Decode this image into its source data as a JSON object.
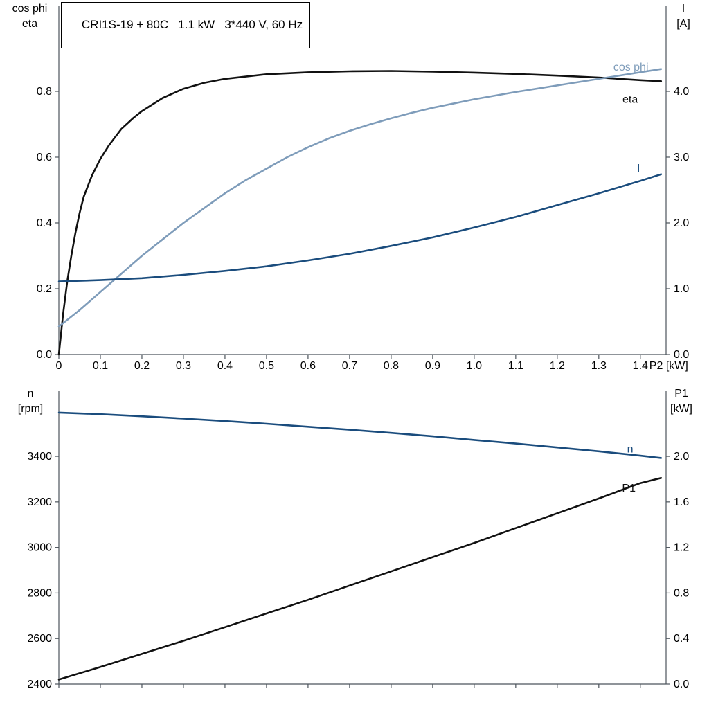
{
  "header": {
    "title": "CRI1S-19 + 80C   1.1 kW   3*440 V, 60 Hz"
  },
  "colors": {
    "black": "#111111",
    "light_blue": "#7e9cba",
    "dark_blue": "#1a4c7d",
    "axis": "#4c545c"
  },
  "corner_labels": {
    "top_left_line1": "cos phi",
    "top_left_line2": "eta",
    "top_right_line1": "I",
    "top_right_line2": "[A]",
    "bottom_left_line1": "n",
    "bottom_left_line2": "[rpm]",
    "bottom_right_line1": "P1",
    "bottom_right_line2": "[kW]"
  },
  "chart_data": [
    {
      "type": "line",
      "x_axis": {
        "label": "P2 [kW]",
        "range": [
          0,
          1.462
        ],
        "ticks": [
          0,
          0.1,
          0.2,
          0.3,
          0.4,
          0.5,
          0.6,
          0.7,
          0.8,
          0.9,
          1.0,
          1.1,
          1.2,
          1.3,
          1.4
        ],
        "tick_labels": [
          "0",
          "0.1",
          "0.2",
          "0.3",
          "0.4",
          "0.5",
          "0.6",
          "0.7",
          "0.8",
          "0.9",
          "1.0",
          "1.1",
          "1.2",
          "1.3",
          "1.4"
        ]
      },
      "left_axis": {
        "label": "cos phi / eta",
        "range": [
          0,
          1.061
        ],
        "ticks": [
          0,
          0.2,
          0.4,
          0.6,
          0.8
        ],
        "tick_labels": [
          "0.0",
          "0.2",
          "0.4",
          "0.6",
          "0.8"
        ]
      },
      "right_axis": {
        "label": "I [A]",
        "range": [
          0,
          5.305
        ],
        "ticks": [
          0,
          1,
          2,
          3,
          4
        ],
        "tick_labels": [
          "0.0",
          "1.0",
          "2.0",
          "3.0",
          "4.0"
        ]
      },
      "series": [
        {
          "name": "eta",
          "axis": "left",
          "color_key": "black",
          "x": [
            0,
            0.005,
            0.01,
            0.02,
            0.03,
            0.04,
            0.05,
            0.06,
            0.08,
            0.1,
            0.12,
            0.15,
            0.18,
            0.2,
            0.25,
            0.3,
            0.35,
            0.4,
            0.5,
            0.6,
            0.7,
            0.8,
            0.9,
            1.0,
            1.1,
            1.2,
            1.3,
            1.4,
            1.45
          ],
          "y": [
            0,
            0.06,
            0.12,
            0.22,
            0.3,
            0.37,
            0.43,
            0.48,
            0.545,
            0.595,
            0.635,
            0.685,
            0.72,
            0.74,
            0.78,
            0.808,
            0.826,
            0.838,
            0.852,
            0.858,
            0.861,
            0.862,
            0.86,
            0.857,
            0.853,
            0.848,
            0.842,
            0.834,
            0.831
          ],
          "label": {
            "text": "eta",
            "x": 1.357,
            "y": 0.776
          }
        },
        {
          "name": "cos phi",
          "axis": "left",
          "color_key": "light_blue",
          "x": [
            0,
            0.05,
            0.1,
            0.15,
            0.2,
            0.25,
            0.3,
            0.35,
            0.4,
            0.45,
            0.5,
            0.55,
            0.6,
            0.65,
            0.7,
            0.75,
            0.8,
            0.85,
            0.9,
            1.0,
            1.1,
            1.2,
            1.3,
            1.4,
            1.45
          ],
          "y": [
            0.085,
            0.135,
            0.19,
            0.245,
            0.3,
            0.35,
            0.4,
            0.445,
            0.49,
            0.53,
            0.565,
            0.6,
            0.63,
            0.657,
            0.68,
            0.7,
            0.718,
            0.735,
            0.75,
            0.776,
            0.798,
            0.818,
            0.838,
            0.858,
            0.868
          ],
          "label": {
            "text": "cos phi",
            "x": 1.335,
            "y": 0.874
          }
        },
        {
          "name": "I",
          "axis": "right",
          "color_key": "dark_blue",
          "x": [
            0,
            0.1,
            0.2,
            0.3,
            0.4,
            0.5,
            0.6,
            0.7,
            0.8,
            0.9,
            1.0,
            1.1,
            1.2,
            1.3,
            1.4,
            1.45
          ],
          "y": [
            1.11,
            1.13,
            1.16,
            1.21,
            1.27,
            1.34,
            1.43,
            1.53,
            1.65,
            1.78,
            1.93,
            2.09,
            2.27,
            2.45,
            2.64,
            2.74
          ],
          "label": {
            "text": "I",
            "x": 1.392,
            "y": 2.83
          }
        }
      ]
    },
    {
      "type": "line",
      "x_axis": {
        "label": "",
        "range": [
          0,
          1.462
        ],
        "ticks": [
          0,
          0.1,
          0.2,
          0.3,
          0.4,
          0.5,
          0.6,
          0.7,
          0.8,
          0.9,
          1.0,
          1.1,
          1.2,
          1.3,
          1.4
        ],
        "tick_labels": []
      },
      "left_axis": {
        "label": "n [rpm]",
        "range": [
          2400,
          3689
        ],
        "ticks": [
          2400,
          2600,
          2800,
          3000,
          3200,
          3400
        ],
        "tick_labels": [
          "2400",
          "2600",
          "2800",
          "3000",
          "3200",
          "3400"
        ]
      },
      "right_axis": {
        "label": "P1 [kW]",
        "range": [
          0,
          2.578
        ],
        "ticks": [
          0,
          0.4,
          0.8,
          1.2,
          1.6,
          2.0
        ],
        "tick_labels": [
          "0.0",
          "0.4",
          "0.8",
          "1.2",
          "1.6",
          "2.0"
        ]
      },
      "series": [
        {
          "name": "n",
          "axis": "left",
          "color_key": "dark_blue",
          "x": [
            0,
            0.1,
            0.2,
            0.3,
            0.4,
            0.5,
            0.6,
            0.7,
            0.8,
            0.9,
            1.0,
            1.1,
            1.2,
            1.3,
            1.4,
            1.45
          ],
          "y": [
            3592,
            3585,
            3576,
            3566,
            3555,
            3543,
            3530,
            3517,
            3503,
            3488,
            3472,
            3456,
            3439,
            3422,
            3403,
            3393
          ],
          "label": {
            "text": "n",
            "x": 1.368,
            "y": 3432
          }
        },
        {
          "name": "P1",
          "axis": "right",
          "color_key": "black",
          "x": [
            0,
            0.1,
            0.2,
            0.3,
            0.4,
            0.5,
            0.6,
            0.7,
            0.8,
            0.9,
            1.0,
            1.1,
            1.2,
            1.3,
            1.4,
            1.45
          ],
          "y": [
            0.04,
            0.15,
            0.265,
            0.38,
            0.5,
            0.62,
            0.74,
            0.865,
            0.99,
            1.115,
            1.24,
            1.37,
            1.5,
            1.63,
            1.765,
            1.81
          ],
          "label": {
            "text": "P1",
            "x": 1.356,
            "y": 1.72
          }
        }
      ]
    }
  ]
}
